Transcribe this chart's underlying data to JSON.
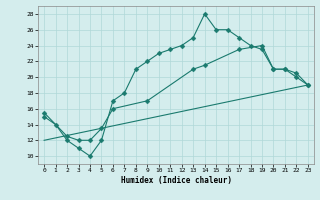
{
  "line1_x": [
    0,
    1,
    2,
    3,
    4,
    5,
    6,
    7,
    8,
    9,
    10,
    11,
    12,
    13,
    14,
    15,
    16,
    17,
    18,
    19,
    20,
    21,
    22,
    23
  ],
  "line1_y": [
    15,
    14,
    12,
    11,
    10,
    12,
    17,
    18,
    21,
    22,
    23,
    23.5,
    24,
    25,
    28,
    26,
    26,
    25,
    24,
    23.5,
    21,
    21,
    20,
    19
  ],
  "line2_x": [
    0,
    2,
    3,
    4,
    5,
    6,
    9,
    13,
    14,
    17,
    19,
    20,
    21,
    22,
    23
  ],
  "line2_y": [
    15.5,
    12.5,
    12,
    12,
    13.5,
    16,
    17,
    21,
    21.5,
    23.5,
    24,
    21,
    21,
    20.5,
    19
  ],
  "line3_x": [
    0,
    23
  ],
  "line3_y": [
    12,
    19
  ],
  "line_color": "#1a7a6e",
  "bg_color": "#d4eded",
  "grid_color": "#b0d8d8",
  "xlabel": "Humidex (Indice chaleur)",
  "xlim": [
    -0.5,
    23.5
  ],
  "ylim": [
    9,
    29
  ],
  "yticks": [
    10,
    12,
    14,
    16,
    18,
    20,
    22,
    24,
    26,
    28
  ],
  "xticks": [
    0,
    1,
    2,
    3,
    4,
    5,
    6,
    7,
    8,
    9,
    10,
    11,
    12,
    13,
    14,
    15,
    16,
    17,
    18,
    19,
    20,
    21,
    22,
    23
  ],
  "marker_size": 2.5
}
